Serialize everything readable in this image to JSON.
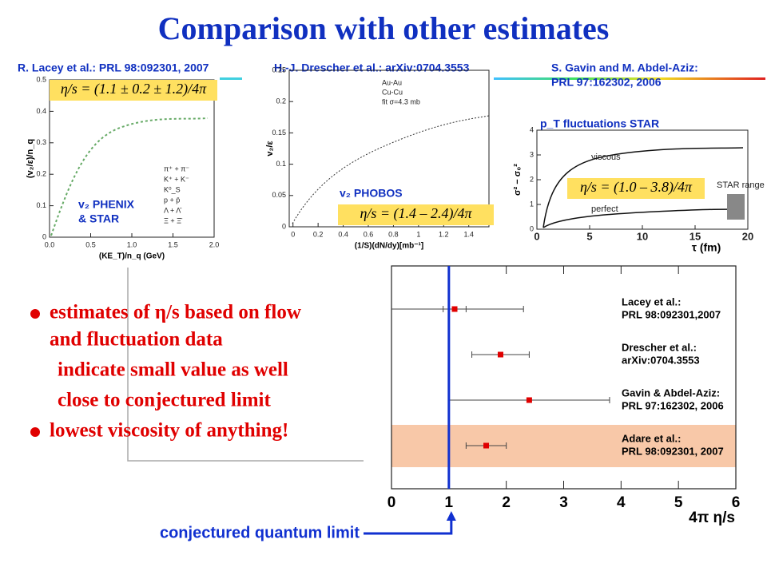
{
  "title": "Comparison with other estimates",
  "references": [
    {
      "lines": [
        "R. Lacey et al.: PRL 98:092301, 2007"
      ]
    },
    {
      "lines": [
        "H.-J. Drescher et al.: arXiv:0704.3553"
      ]
    },
    {
      "lines": [
        "S. Gavin and M. Abdel-Aziz:",
        "PRL 97:162302, 2006"
      ]
    }
  ],
  "panels": [
    {
      "formula": "η/s = (1.1 ± 0.2 ± 1.2)/4π",
      "caption": [
        "v₂ PHENIX",
        "& STAR"
      ],
      "ylabel": "(v₂/ε)/n_q",
      "xlabel": "(KE_T)/n_q (GeV)",
      "yticks": [
        "0",
        "0.1",
        "0.2",
        "0.3",
        "0.4",
        "0.5"
      ],
      "xticks": [
        "0.0",
        "0.5",
        "1.0",
        "1.5",
        "2.0"
      ],
      "legend": [
        "π⁺ + π⁻",
        "K⁺ + K⁻",
        "K⁰_S",
        "p + p̄",
        "Λ + Λ̄",
        "Ξ + Ξ̄"
      ]
    },
    {
      "formula": "η/s = (1.4 – 2.4)/4π",
      "caption": [
        "v₂ PHOBOS"
      ],
      "ylabel": "v₂/ε",
      "xlabel": "(1/S)(dN/dy)[mb⁻¹]",
      "yticks": [
        "0",
        "0.05",
        "0.1",
        "0.15",
        "0.2",
        "0.25"
      ],
      "xticks": [
        "0",
        "0.2",
        "0.4",
        "0.6",
        "0.8",
        "1",
        "1.2",
        "1.4"
      ],
      "legend": [
        "Au-Au",
        "Cu-Cu",
        "fit σ=4.3 mb"
      ]
    },
    {
      "formula": "η/s = (1.0 – 3.8)/4π",
      "caption": [
        "p_T fluctuations STAR"
      ],
      "ylabel": "σ² − σ₀²",
      "xlabel": "τ (fm)",
      "yticks": [
        "0",
        "1",
        "2",
        "3",
        "4"
      ],
      "xticks": [
        "0",
        "5",
        "10",
        "15",
        "20"
      ],
      "legend": [
        "viscous",
        "perfect",
        "STAR range"
      ]
    }
  ],
  "bullets": [
    {
      "level": 0,
      "text": "estimates of η/s based on flow"
    },
    {
      "level": 1,
      "text": "and fluctuation data"
    },
    {
      "level": 1,
      "text": "indicate small value as well"
    },
    {
      "level": 1,
      "text": "close to conjectured limit"
    },
    {
      "level": 0,
      "text": "lowest viscosity of anything!"
    }
  ],
  "chart_data": {
    "type": "errorbar",
    "categories": [
      [
        "Lacey et al.:",
        "PRL 98:092301,2007"
      ],
      [
        "Drescher et al.:",
        "arXiv:0704.3553"
      ],
      [
        "Gavin & Abdel-Aziz:",
        "PRL 97:162302, 2006"
      ],
      [
        "Adare et al.:",
        "PRL 98:092301, 2007"
      ]
    ],
    "values": [
      1.1,
      1.9,
      2.4,
      1.65
    ],
    "errors": [
      1.2,
      0.5,
      1.4,
      0.35
    ],
    "stat_errors": [
      0.2,
      null,
      null,
      null
    ],
    "color": "#e00000",
    "xlim": [
      0,
      6
    ],
    "xticks": [
      0,
      1,
      2,
      3,
      4,
      5,
      6
    ],
    "xlabel": "4π η/s",
    "highlight": 3,
    "highlight_color": "#f8c8a8",
    "limit": {
      "value": 1,
      "label": "conjectured quantum limit",
      "color": "#1030d0"
    }
  }
}
